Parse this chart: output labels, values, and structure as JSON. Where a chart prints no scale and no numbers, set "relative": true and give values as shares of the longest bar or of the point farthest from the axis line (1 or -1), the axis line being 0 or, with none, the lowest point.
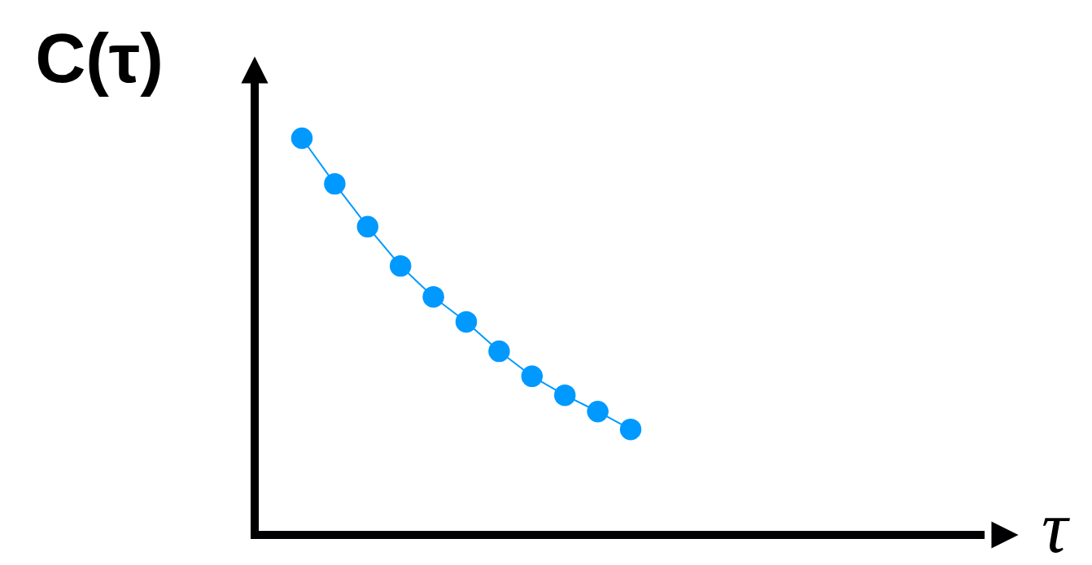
{
  "chart_data": {
    "type": "line",
    "annotations": [
      "τ"
    ],
    "ylabel": "C(τ)",
    "relative": true,
    "marker": "circle",
    "line_style": "solid",
    "categories": [
      null,
      null,
      null,
      null,
      null,
      null,
      null,
      null,
      null,
      null,
      null
    ],
    "series": [
      {
        "color": "#0099ff",
        "values": [
          1,
          0.885,
          0.777,
          0.678,
          0.6,
          0.537,
          0.463,
          0.4,
          0.352,
          0.311,
          0.266
        ]
      }
    ]
  }
}
